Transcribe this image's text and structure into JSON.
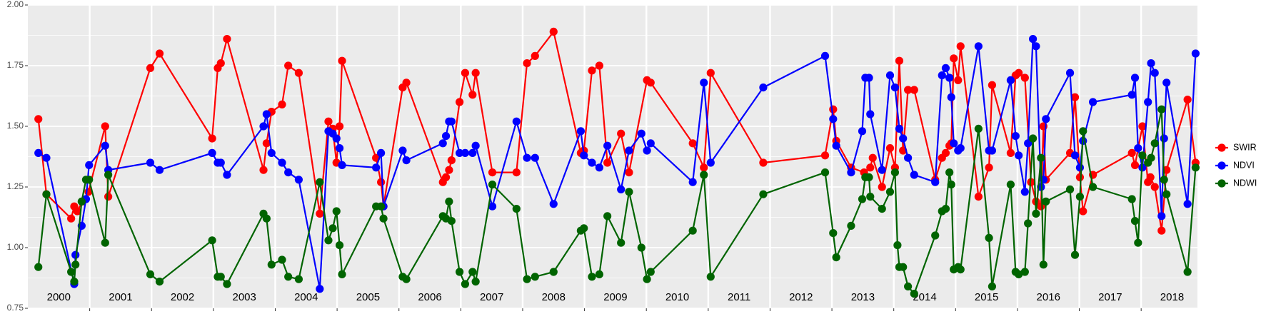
{
  "chart_data": {
    "type": "line",
    "xlim": [
      2000,
      2018.91
    ],
    "ylim": [
      0.75,
      2.0
    ],
    "yticks": [
      0.75,
      {
        "value": 1,
        "label": "1.00"
      },
      1.25,
      {
        "value": 1.5,
        "label": "1.50"
      },
      1.75,
      {
        "value": 2,
        "label": "2.00"
      }
    ],
    "yminor": [
      0.875,
      1.125,
      1.375,
      1.625,
      1.875
    ],
    "xticks": [
      2001,
      2002,
      2003,
      2004,
      2005,
      2006,
      2007,
      2008,
      2009,
      2010,
      2011,
      2012,
      2013,
      2014,
      2015,
      2016,
      2017,
      2018
    ],
    "year_labels": [
      {
        "x": 2000.5,
        "label": "2000"
      },
      {
        "x": 2001.5,
        "label": "2001"
      },
      {
        "x": 2002.5,
        "label": "2002"
      },
      {
        "x": 2003.5,
        "label": "2003"
      },
      {
        "x": 2004.5,
        "label": "2004"
      },
      {
        "x": 2005.5,
        "label": "2005"
      },
      {
        "x": 2006.5,
        "label": "2006"
      },
      {
        "x": 2007.5,
        "label": "2007"
      },
      {
        "x": 2008.5,
        "label": "2008"
      },
      {
        "x": 2009.5,
        "label": "2009"
      },
      {
        "x": 2010.5,
        "label": "2010"
      },
      {
        "x": 2011.5,
        "label": "2011"
      },
      {
        "x": 2012.5,
        "label": "2012"
      },
      {
        "x": 2013.5,
        "label": "2013"
      },
      {
        "x": 2014.5,
        "label": "2014"
      },
      {
        "x": 2015.5,
        "label": "2015"
      },
      {
        "x": 2016.5,
        "label": "2016"
      },
      {
        "x": 2017.5,
        "label": "2017"
      },
      {
        "x": 2018.5,
        "label": "2018"
      }
    ],
    "grid": true,
    "legend_position": "right",
    "series": [
      {
        "name": "SWIR",
        "color": "#FF0000",
        "x": [
          2000.17,
          2000.3,
          2000.7,
          2000.75,
          2000.8,
          2000.88,
          2000.98,
          2001.25,
          2001.3,
          2001.98,
          2002.13,
          2002.98,
          2003.07,
          2003.12,
          2003.22,
          2003.81,
          2003.86,
          2003.94,
          2004.11,
          2004.21,
          2004.38,
          2004.72,
          2004.86,
          2004.93,
          2004.99,
          2005.04,
          2005.08,
          2005.63,
          2005.71,
          2005.75,
          2006.06,
          2006.12,
          2006.71,
          2006.76,
          2006.81,
          2006.85,
          2006.98,
          2007.07,
          2007.19,
          2007.24,
          2007.51,
          2007.9,
          2008.07,
          2008.2,
          2008.5,
          2008.94,
          2008.99,
          2009.12,
          2009.24,
          2009.37,
          2009.59,
          2009.72,
          2010.01,
          2010.07,
          2010.75,
          2010.93,
          2011.04,
          2011.89,
          2012.89,
          2013.02,
          2013.07,
          2013.31,
          2013.52,
          2013.62,
          2013.66,
          2013.81,
          2013.94,
          2014.02,
          2014.09,
          2014.15,
          2014.23,
          2014.33,
          2014.67,
          2014.78,
          2014.84,
          2014.9,
          2014.93,
          2014.97,
          2015.04,
          2015.08,
          2015.37,
          2015.54,
          2015.59,
          2015.89,
          2015.97,
          2016.02,
          2016.12,
          2016.22,
          2016.3,
          2016.38,
          2016.42,
          2016.46,
          2016.85,
          2016.93,
          2017.01,
          2017.06,
          2017.22,
          2017.85,
          2017.9,
          2018.02,
          2018.11,
          2018.15,
          2018.22,
          2018.33,
          2018.41,
          2018.75,
          2018.88
        ],
        "values": [
          1.53,
          1.22,
          1.12,
          1.17,
          1.15,
          1.19,
          1.23,
          1.5,
          1.21,
          1.74,
          1.8,
          1.45,
          1.74,
          1.76,
          1.86,
          1.32,
          1.43,
          1.56,
          1.59,
          1.75,
          1.72,
          1.14,
          1.52,
          1.49,
          1.35,
          1.5,
          1.77,
          1.37,
          1.27,
          1.17,
          1.66,
          1.68,
          1.27,
          1.29,
          1.32,
          1.36,
          1.6,
          1.72,
          1.63,
          1.72,
          1.31,
          1.31,
          1.76,
          1.79,
          1.89,
          1.39,
          1.4,
          1.73,
          1.75,
          1.35,
          1.47,
          1.31,
          1.69,
          1.68,
          1.43,
          1.33,
          1.72,
          1.35,
          1.38,
          1.57,
          1.44,
          1.33,
          1.31,
          1.33,
          1.37,
          1.25,
          1.41,
          1.33,
          1.77,
          1.4,
          1.65,
          1.65,
          1.28,
          1.37,
          1.39,
          1.42,
          1.43,
          1.78,
          1.69,
          1.83,
          1.21,
          1.33,
          1.67,
          1.39,
          1.71,
          1.72,
          1.7,
          1.27,
          1.19,
          1.17,
          1.5,
          1.28,
          1.39,
          1.62,
          1.29,
          1.15,
          1.3,
          1.39,
          1.34,
          1.5,
          1.27,
          1.29,
          1.25,
          1.07,
          1.32,
          1.61,
          1.35
        ]
      },
      {
        "name": "NDVI",
        "color": "#0000FF",
        "x": [
          2000.17,
          2000.3,
          2000.75,
          2000.77,
          2000.87,
          2000.94,
          2000.99,
          2001.25,
          2001.3,
          2001.98,
          2002.13,
          2002.98,
          2003.07,
          2003.12,
          2003.22,
          2003.81,
          2003.86,
          2003.94,
          2004.11,
          2004.21,
          2004.38,
          2004.72,
          2004.86,
          2004.93,
          2004.99,
          2005.04,
          2005.08,
          2005.63,
          2005.71,
          2005.75,
          2006.06,
          2006.12,
          2006.71,
          2006.76,
          2006.81,
          2006.85,
          2006.98,
          2007.07,
          2007.19,
          2007.24,
          2007.51,
          2007.9,
          2008.07,
          2008.2,
          2008.5,
          2008.94,
          2008.99,
          2009.12,
          2009.24,
          2009.37,
          2009.59,
          2009.72,
          2009.92,
          2010.01,
          2010.07,
          2010.75,
          2010.93,
          2011.04,
          2011.89,
          2012.89,
          2013.02,
          2013.07,
          2013.31,
          2013.49,
          2013.54,
          2013.6,
          2013.62,
          2013.81,
          2013.94,
          2014.02,
          2014.09,
          2014.15,
          2014.23,
          2014.33,
          2014.67,
          2014.78,
          2014.84,
          2014.9,
          2014.93,
          2014.97,
          2015.04,
          2015.08,
          2015.37,
          2015.54,
          2015.59,
          2015.89,
          2015.97,
          2016.02,
          2016.12,
          2016.17,
          2016.25,
          2016.3,
          2016.38,
          2016.42,
          2016.46,
          2016.85,
          2016.93,
          2017.01,
          2017.06,
          2017.22,
          2017.85,
          2017.9,
          2017.95,
          2018.02,
          2018.11,
          2018.16,
          2018.22,
          2018.33,
          2018.37,
          2018.41,
          2018.75,
          2018.88
        ],
        "values": [
          1.39,
          1.37,
          0.85,
          0.97,
          1.09,
          1.2,
          1.34,
          1.42,
          1.32,
          1.35,
          1.32,
          1.39,
          1.35,
          1.35,
          1.3,
          1.5,
          1.55,
          1.39,
          1.35,
          1.31,
          1.28,
          0.83,
          1.48,
          1.47,
          1.45,
          1.41,
          1.34,
          1.33,
          1.39,
          1.17,
          1.4,
          1.36,
          1.43,
          1.46,
          1.52,
          1.52,
          1.39,
          1.39,
          1.39,
          1.42,
          1.17,
          1.52,
          1.37,
          1.37,
          1.18,
          1.48,
          1.38,
          1.35,
          1.33,
          1.42,
          1.24,
          1.4,
          1.47,
          1.4,
          1.43,
          1.27,
          1.68,
          1.35,
          1.66,
          1.79,
          1.53,
          1.42,
          1.31,
          1.48,
          1.7,
          1.7,
          1.55,
          1.32,
          1.71,
          1.66,
          1.49,
          1.45,
          1.37,
          1.3,
          1.27,
          1.71,
          1.74,
          1.7,
          1.62,
          1.43,
          1.4,
          1.41,
          1.83,
          1.4,
          1.4,
          1.69,
          1.46,
          1.38,
          1.23,
          1.43,
          1.86,
          1.83,
          1.25,
          1.28,
          1.53,
          1.72,
          1.38,
          1.33,
          1.44,
          1.6,
          1.63,
          1.7,
          1.41,
          1.33,
          1.6,
          1.76,
          1.72,
          1.13,
          1.45,
          1.68,
          1.18,
          1.8
        ]
      },
      {
        "name": "NDWI",
        "color": "#006400",
        "x": [
          2000.17,
          2000.3,
          2000.7,
          2000.75,
          2000.77,
          2000.87,
          2000.94,
          2000.99,
          2001.25,
          2001.3,
          2001.98,
          2002.13,
          2002.98,
          2003.07,
          2003.12,
          2003.22,
          2003.81,
          2003.86,
          2003.94,
          2004.11,
          2004.21,
          2004.38,
          2004.72,
          2004.86,
          2004.93,
          2004.99,
          2005.04,
          2005.08,
          2005.63,
          2005.71,
          2005.75,
          2006.06,
          2006.12,
          2006.71,
          2006.76,
          2006.81,
          2006.85,
          2006.98,
          2007.07,
          2007.19,
          2007.24,
          2007.51,
          2007.9,
          2008.07,
          2008.2,
          2008.5,
          2008.94,
          2008.99,
          2009.12,
          2009.24,
          2009.37,
          2009.59,
          2009.72,
          2009.92,
          2010.01,
          2010.07,
          2010.75,
          2010.93,
          2011.04,
          2011.89,
          2012.89,
          2013.02,
          2013.07,
          2013.31,
          2013.49,
          2013.54,
          2013.6,
          2013.62,
          2013.81,
          2013.94,
          2014.02,
          2014.06,
          2014.09,
          2014.15,
          2014.23,
          2014.33,
          2014.67,
          2014.78,
          2014.84,
          2014.9,
          2014.93,
          2014.97,
          2015.04,
          2015.08,
          2015.37,
          2015.54,
          2015.59,
          2015.89,
          2015.97,
          2016.02,
          2016.12,
          2016.17,
          2016.25,
          2016.3,
          2016.38,
          2016.42,
          2016.46,
          2016.85,
          2016.93,
          2017.01,
          2017.06,
          2017.22,
          2017.85,
          2017.9,
          2017.95,
          2018.02,
          2018.11,
          2018.16,
          2018.22,
          2018.33,
          2018.37,
          2018.41,
          2018.75,
          2018.88
        ],
        "values": [
          0.92,
          1.22,
          0.9,
          0.86,
          0.93,
          1.19,
          1.28,
          1.28,
          1.02,
          1.3,
          0.89,
          0.86,
          1.03,
          0.88,
          0.88,
          0.85,
          1.14,
          1.12,
          0.93,
          0.95,
          0.88,
          0.87,
          1.27,
          1.03,
          1.08,
          1.15,
          1.01,
          0.89,
          1.17,
          1.17,
          1.12,
          0.88,
          0.87,
          1.13,
          1.12,
          1.19,
          1.11,
          0.9,
          0.85,
          0.9,
          0.86,
          1.26,
          1.16,
          0.87,
          0.88,
          0.9,
          1.07,
          1.08,
          0.88,
          0.89,
          1.13,
          1.02,
          1.23,
          1.0,
          0.87,
          0.9,
          1.07,
          1.3,
          0.88,
          1.22,
          1.31,
          1.06,
          0.96,
          1.09,
          1.2,
          1.29,
          1.29,
          1.21,
          1.16,
          1.23,
          1.31,
          1.01,
          0.92,
          0.92,
          0.84,
          0.81,
          1.05,
          1.15,
          1.16,
          1.31,
          1.26,
          0.91,
          0.92,
          0.91,
          1.49,
          1.04,
          0.84,
          1.26,
          0.9,
          0.89,
          0.9,
          1.1,
          1.45,
          1.14,
          1.37,
          0.93,
          1.19,
          1.24,
          0.97,
          1.21,
          1.48,
          1.25,
          1.2,
          1.11,
          1.02,
          1.38,
          1.35,
          1.37,
          1.43,
          1.57,
          1.28,
          1.22,
          0.9,
          1.33
        ]
      }
    ]
  }
}
